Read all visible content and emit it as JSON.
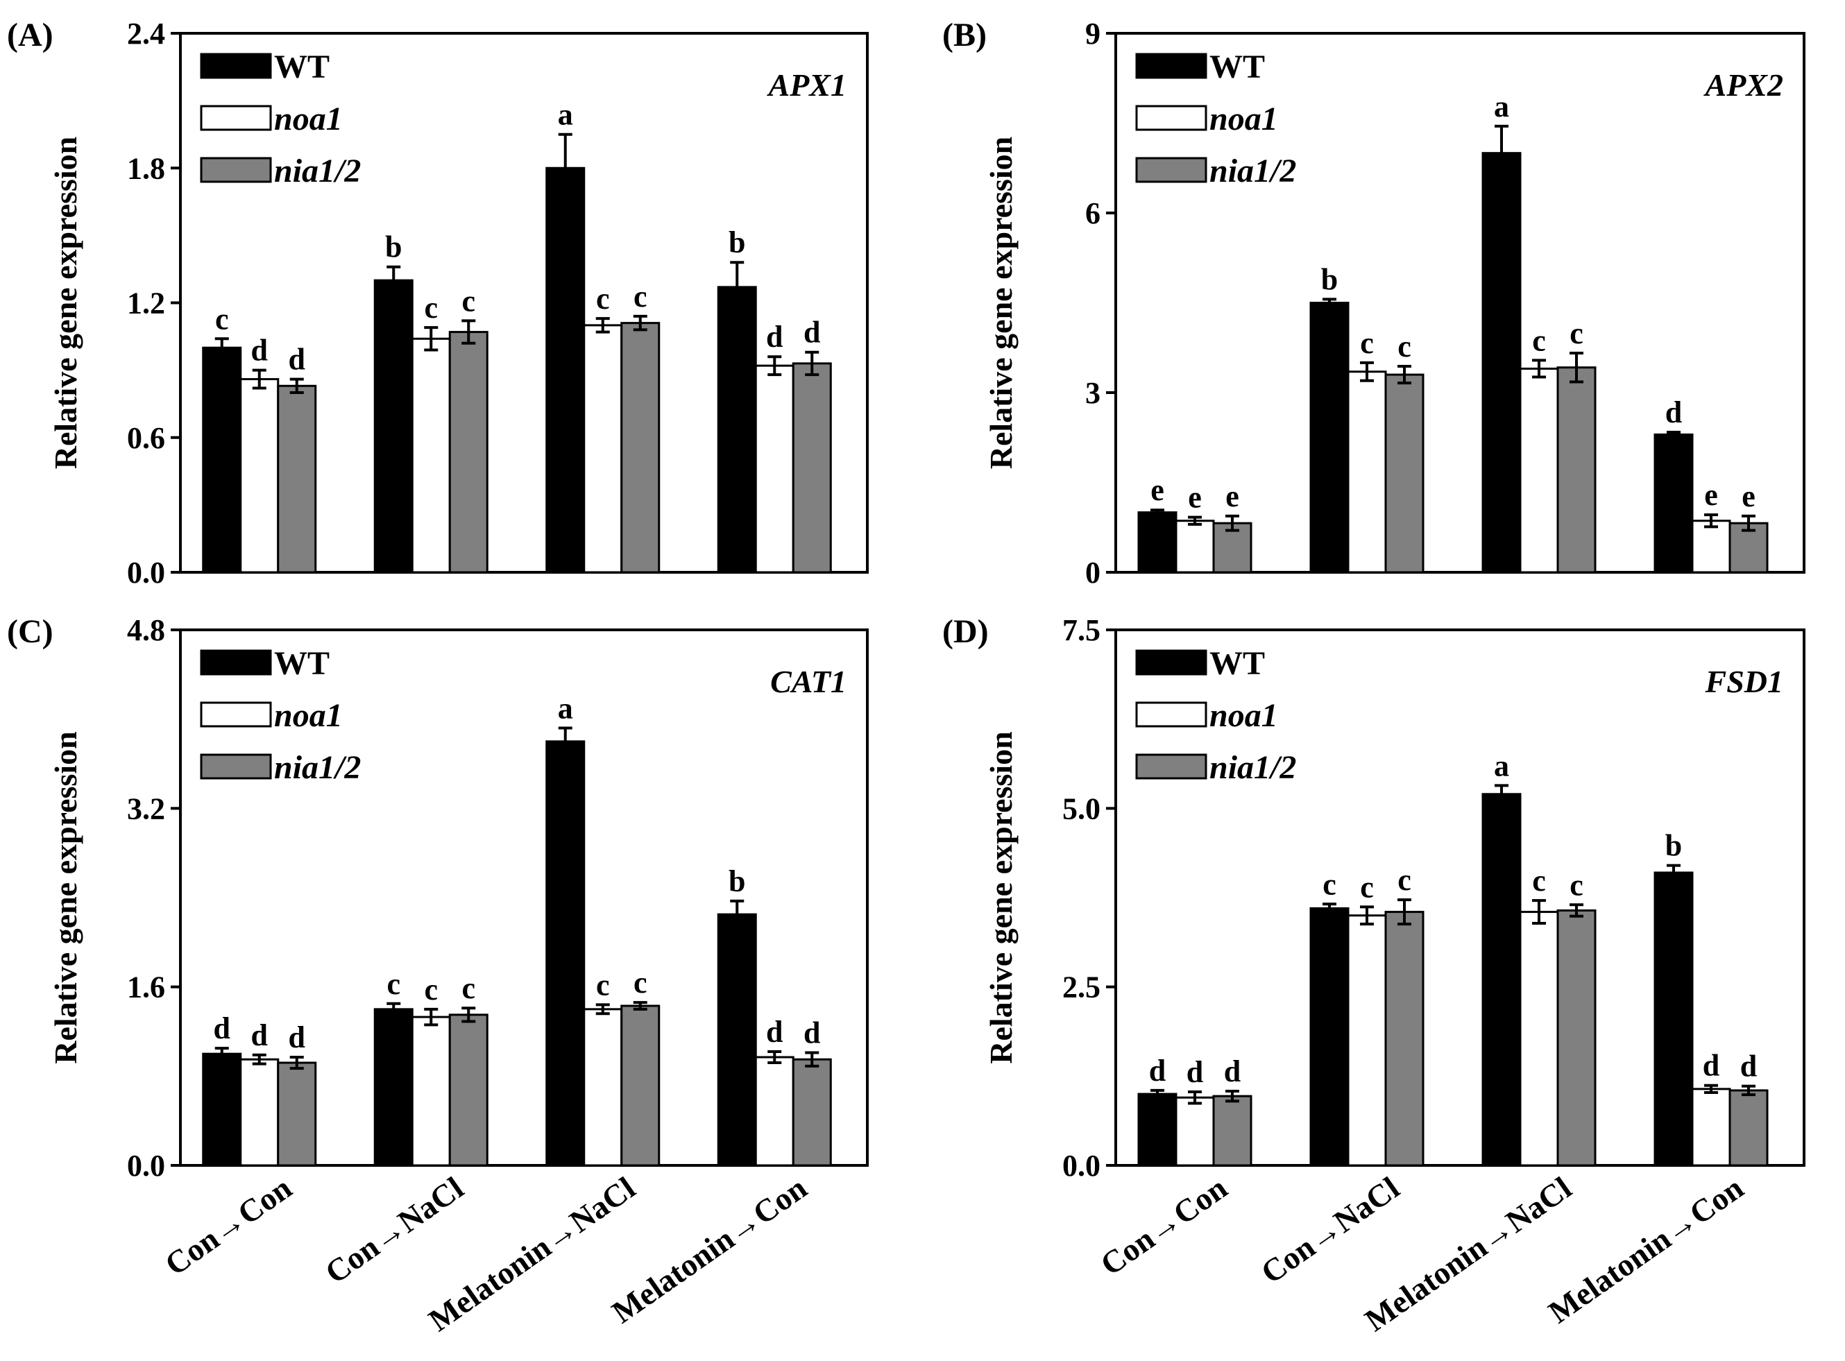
{
  "chart_data": [
    {
      "type": "bar",
      "panel_label": "(A)",
      "gene": "APX1",
      "ylabel": "Relative gene expression",
      "ylim": [
        0,
        2.4
      ],
      "yticks": [
        "0.0",
        "0.6",
        "1.2",
        "1.8",
        "2.4"
      ],
      "categories": [
        "Con→Con",
        "Con→NaCl",
        "Melatonin→NaCl",
        "Melatonin→Con"
      ],
      "series": [
        {
          "name": "WT",
          "color": "#000000",
          "values": [
            1.0,
            1.3,
            1.8,
            1.27
          ],
          "errors": [
            0.04,
            0.06,
            0.15,
            0.11
          ],
          "labels": [
            "c",
            "b",
            "a",
            "b"
          ]
        },
        {
          "name": "noa1",
          "color": "#ffffff",
          "values": [
            0.86,
            1.04,
            1.1,
            0.92
          ],
          "errors": [
            0.04,
            0.05,
            0.03,
            0.04
          ],
          "labels": [
            "d",
            "c",
            "c",
            "d"
          ]
        },
        {
          "name": "nia1/2",
          "color": "#808080",
          "values": [
            0.83,
            1.07,
            1.11,
            0.93
          ],
          "errors": [
            0.03,
            0.05,
            0.03,
            0.05
          ],
          "labels": [
            "d",
            "c",
            "c",
            "d"
          ]
        }
      ],
      "legend_position": "top-left",
      "show_xlabels": false
    },
    {
      "type": "bar",
      "panel_label": "(B)",
      "gene": "APX2",
      "ylabel": "Relative gene expression",
      "ylim": [
        0,
        9
      ],
      "yticks": [
        "0",
        "3",
        "6",
        "9"
      ],
      "categories": [
        "Con→Con",
        "Con→NaCl",
        "Melatonin→NaCl",
        "Melatonin→Con"
      ],
      "series": [
        {
          "name": "WT",
          "color": "#000000",
          "values": [
            1.0,
            4.5,
            7.0,
            2.3
          ],
          "errors": [
            0.04,
            0.06,
            0.45,
            0.04
          ],
          "labels": [
            "e",
            "b",
            "a",
            "d"
          ]
        },
        {
          "name": "noa1",
          "color": "#ffffff",
          "values": [
            0.86,
            3.35,
            3.4,
            0.86
          ],
          "errors": [
            0.06,
            0.15,
            0.14,
            0.1
          ],
          "labels": [
            "e",
            "c",
            "c",
            "e"
          ]
        },
        {
          "name": "nia1/2",
          "color": "#808080",
          "values": [
            0.82,
            3.3,
            3.42,
            0.82
          ],
          "errors": [
            0.12,
            0.14,
            0.24,
            0.12
          ],
          "labels": [
            "e",
            "c",
            "c",
            "e"
          ]
        }
      ],
      "legend_position": "top-left",
      "show_xlabels": false
    },
    {
      "type": "bar",
      "panel_label": "(C)",
      "gene": "CAT1",
      "ylabel": "Relative gene expression",
      "ylim": [
        0,
        4.8
      ],
      "yticks": [
        "0.0",
        "1.6",
        "3.2",
        "4.8"
      ],
      "categories": [
        "Con→Con",
        "Con→NaCl",
        "Melatonin→NaCl",
        "Melatonin→Con"
      ],
      "series": [
        {
          "name": "WT",
          "color": "#000000",
          "values": [
            1.0,
            1.4,
            3.8,
            2.25
          ],
          "errors": [
            0.05,
            0.05,
            0.12,
            0.12
          ],
          "labels": [
            "d",
            "c",
            "a",
            "b"
          ]
        },
        {
          "name": "noa1",
          "color": "#ffffff",
          "values": [
            0.95,
            1.33,
            1.4,
            0.97
          ],
          "errors": [
            0.04,
            0.07,
            0.04,
            0.05
          ],
          "labels": [
            "d",
            "c",
            "c",
            "d"
          ]
        },
        {
          "name": "nia1/2",
          "color": "#808080",
          "values": [
            0.92,
            1.35,
            1.43,
            0.95
          ],
          "errors": [
            0.05,
            0.06,
            0.03,
            0.06
          ],
          "labels": [
            "d",
            "c",
            "c",
            "d"
          ]
        }
      ],
      "legend_position": "top-left",
      "show_xlabels": true
    },
    {
      "type": "bar",
      "panel_label": "(D)",
      "gene": "FSD1",
      "ylabel": "Relative gene expression",
      "ylim": [
        0,
        7.5
      ],
      "yticks": [
        "0.0",
        "2.5",
        "5.0",
        "7.5"
      ],
      "categories": [
        "Con→Con",
        "Con→NaCl",
        "Melatonin→NaCl",
        "Melatonin→Con"
      ],
      "series": [
        {
          "name": "WT",
          "color": "#000000",
          "values": [
            1.0,
            3.6,
            5.2,
            4.1
          ],
          "errors": [
            0.05,
            0.06,
            0.12,
            0.1
          ],
          "labels": [
            "d",
            "c",
            "a",
            "b"
          ]
        },
        {
          "name": "noa1",
          "color": "#ffffff",
          "values": [
            0.95,
            3.5,
            3.55,
            1.07
          ],
          "errors": [
            0.08,
            0.12,
            0.16,
            0.05
          ],
          "labels": [
            "d",
            "c",
            "c",
            "d"
          ]
        },
        {
          "name": "nia1/2",
          "color": "#808080",
          "values": [
            0.97,
            3.55,
            3.57,
            1.05
          ],
          "errors": [
            0.07,
            0.17,
            0.08,
            0.06
          ],
          "labels": [
            "d",
            "c",
            "c",
            "d"
          ]
        }
      ],
      "legend_position": "top-left",
      "show_xlabels": true
    }
  ]
}
